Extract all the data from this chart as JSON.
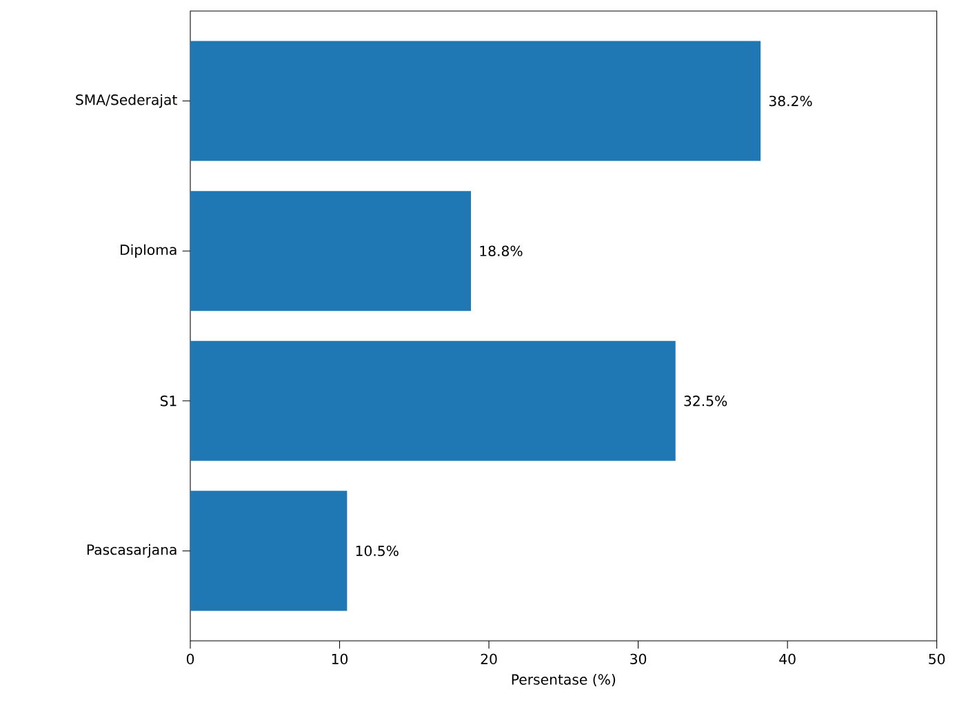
{
  "chart_data": {
    "type": "bar",
    "orientation": "horizontal",
    "xlabel": "Persentase (%)",
    "categories": [
      "SMA/Sederajat",
      "Diploma",
      "S1",
      "Pascasarjana"
    ],
    "values": [
      38.2,
      18.8,
      32.5,
      10.5
    ],
    "value_labels": [
      "38.2%",
      "18.8%",
      "32.5%",
      "10.5%"
    ],
    "color": "#1f77b4",
    "xlim": [
      0,
      50
    ],
    "xticks": [
      0,
      10,
      20,
      30,
      40,
      50
    ],
    "grid": false
  }
}
